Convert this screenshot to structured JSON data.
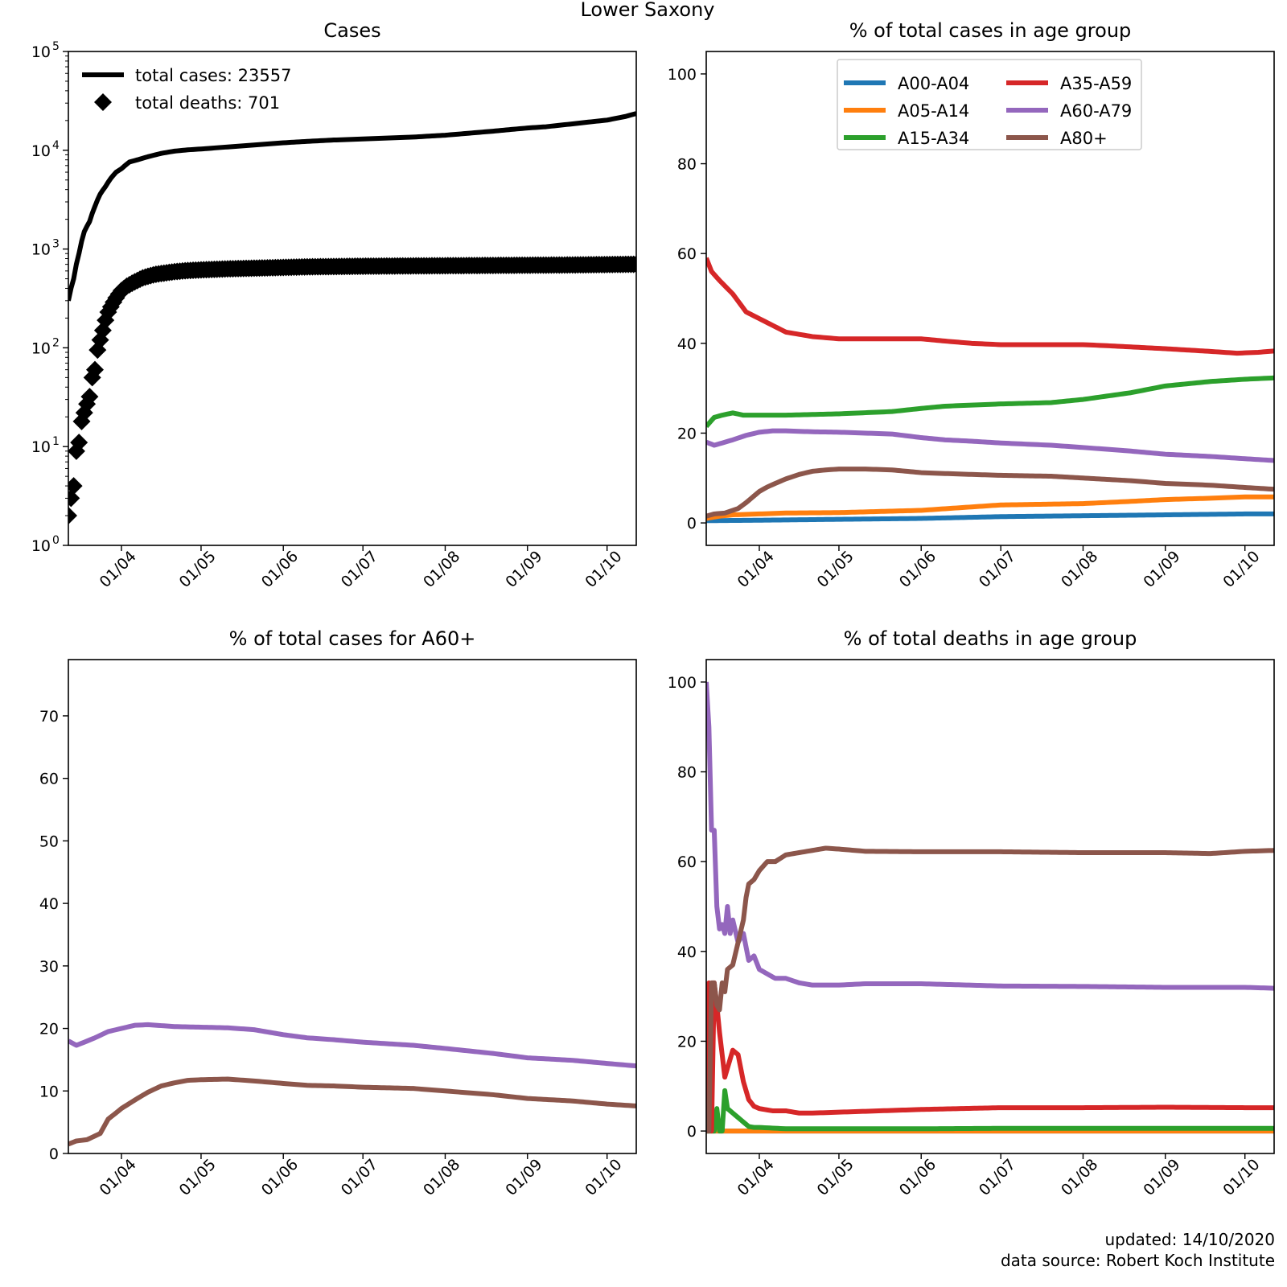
{
  "suptitle": "Lower Saxony",
  "footer": {
    "updated": "updated: 14/10/2020",
    "source": "data source: Robert Koch Institute"
  },
  "colors": {
    "A00-A04": "#1f77b4",
    "A05-A14": "#ff7f0e",
    "A15-A34": "#2ca02c",
    "A35-A59": "#d62728",
    "A60-A79": "#9467bd",
    "A80+": "#8c564b",
    "cases": "#000000"
  },
  "chart_data": [
    {
      "id": "cases",
      "type": "line",
      "title": "Cases",
      "yscale": "log",
      "ylim": [
        1,
        100000
      ],
      "xlim_day": [
        0,
        214
      ],
      "x_date_start": "2020-03-12",
      "x_ticks_day": [
        20,
        50,
        81,
        111,
        142,
        173,
        203
      ],
      "x_tick_labels": [
        "01/04",
        "01/05",
        "01/06",
        "01/07",
        "01/08",
        "01/09",
        "01/10"
      ],
      "y_ticks": [
        1,
        10,
        100,
        1000,
        10000,
        100000
      ],
      "y_tick_base": "10",
      "y_tick_exps": [
        "0",
        "1",
        "2",
        "3",
        "4",
        "5"
      ],
      "legend_position": "upper-left",
      "series": [
        {
          "name": "total cases",
          "label": "total cases: 23557",
          "style": "line",
          "color": "#000000",
          "x": [
            0,
            2,
            4,
            6,
            8,
            10,
            12,
            14,
            16,
            18,
            20,
            23,
            26,
            30,
            35,
            40,
            45,
            50,
            60,
            70,
            81,
            90,
            100,
            111,
            120,
            130,
            142,
            150,
            160,
            173,
            180,
            190,
            203,
            210,
            214
          ],
          "values": [
            300,
            500,
            900,
            1500,
            1900,
            2700,
            3600,
            4300,
            5200,
            6000,
            6500,
            7600,
            8000,
            8600,
            9300,
            9800,
            10100,
            10300,
            10800,
            11300,
            11900,
            12300,
            12700,
            13000,
            13300,
            13600,
            14200,
            14800,
            15600,
            16800,
            17300,
            18500,
            20200,
            22000,
            23557
          ]
        },
        {
          "name": "total deaths",
          "label": "total deaths: 701",
          "style": "markers",
          "color": "#000000",
          "x": [
            0,
            1,
            2,
            3,
            4,
            5,
            6,
            7,
            8,
            9,
            10,
            11,
            12,
            13,
            14,
            15,
            16,
            17,
            18,
            19,
            20,
            22,
            24,
            26,
            28,
            30,
            33,
            36,
            40,
            45,
            50,
            60,
            70,
            80,
            90,
            100,
            110,
            130,
            150,
            170,
            190,
            200,
            214
          ],
          "values": [
            2,
            3,
            4,
            9,
            11,
            18,
            22,
            27,
            32,
            50,
            60,
            95,
            120,
            150,
            190,
            230,
            260,
            290,
            320,
            350,
            380,
            420,
            450,
            480,
            510,
            530,
            555,
            570,
            590,
            605,
            615,
            630,
            640,
            650,
            660,
            665,
            670,
            675,
            680,
            685,
            690,
            695,
            701
          ]
        }
      ]
    },
    {
      "id": "age_cases",
      "type": "line",
      "title": "% of total cases in age group",
      "ylim": [
        -5,
        105
      ],
      "xlim_day": [
        0,
        214
      ],
      "x_ticks_day": [
        20,
        50,
        81,
        111,
        142,
        173,
        203
      ],
      "x_tick_labels": [
        "01/04",
        "01/05",
        "01/06",
        "01/07",
        "01/08",
        "01/09",
        "01/10"
      ],
      "y_ticks": [
        0,
        20,
        40,
        60,
        80,
        100
      ],
      "legend_position": "upper-center",
      "series": [
        {
          "name": "A00-A04",
          "color": "#1f77b4",
          "x": [
            0,
            20,
            50,
            81,
            111,
            142,
            173,
            203,
            214
          ],
          "values": [
            0.5,
            0.6,
            0.8,
            1.0,
            1.4,
            1.6,
            1.8,
            2.0,
            2.0
          ]
        },
        {
          "name": "A05-A14",
          "color": "#ff7f0e",
          "x": [
            0,
            5,
            10,
            20,
            30,
            50,
            81,
            111,
            142,
            160,
            173,
            190,
            203,
            214
          ],
          "values": [
            1.0,
            1.5,
            1.8,
            2.0,
            2.2,
            2.3,
            2.8,
            4.0,
            4.3,
            4.8,
            5.2,
            5.5,
            5.8,
            5.8
          ]
        },
        {
          "name": "A15-A34",
          "color": "#2ca02c",
          "x": [
            0,
            3,
            6,
            10,
            14,
            20,
            30,
            50,
            70,
            81,
            90,
            111,
            130,
            142,
            160,
            173,
            190,
            203,
            214
          ],
          "values": [
            21.5,
            23.5,
            24.0,
            24.5,
            24.0,
            24.0,
            24.0,
            24.3,
            24.8,
            25.5,
            26.0,
            26.5,
            26.8,
            27.5,
            29.0,
            30.5,
            31.5,
            32.0,
            32.3
          ]
        },
        {
          "name": "A35-A59",
          "color": "#d62728",
          "x": [
            0,
            2,
            5,
            10,
            15,
            20,
            25,
            30,
            40,
            50,
            60,
            70,
            81,
            90,
            100,
            111,
            130,
            142,
            150,
            160,
            173,
            190,
            200,
            208,
            214
          ],
          "values": [
            59,
            56,
            54,
            51,
            47,
            45.5,
            44,
            42.5,
            41.5,
            41,
            41,
            41,
            41,
            40.5,
            40,
            39.7,
            39.7,
            39.7,
            39.5,
            39.2,
            38.8,
            38.2,
            37.8,
            38.0,
            38.3
          ]
        },
        {
          "name": "A60-A79",
          "color": "#9467bd",
          "x": [
            0,
            3,
            6,
            10,
            15,
            20,
            25,
            30,
            40,
            50,
            60,
            70,
            81,
            90,
            100,
            111,
            130,
            142,
            160,
            173,
            190,
            203,
            214
          ],
          "values": [
            18,
            17.3,
            17.8,
            18.5,
            19.5,
            20.2,
            20.5,
            20.5,
            20.3,
            20.2,
            20.0,
            19.8,
            19.0,
            18.5,
            18.2,
            17.8,
            17.3,
            16.8,
            16.0,
            15.3,
            14.8,
            14.3,
            13.9
          ]
        },
        {
          "name": "A80+",
          "color": "#8c564b",
          "x": [
            0,
            3,
            7,
            12,
            15,
            18,
            20,
            23,
            26,
            30,
            35,
            40,
            45,
            50,
            60,
            70,
            81,
            90,
            100,
            111,
            130,
            142,
            160,
            173,
            190,
            203,
            214
          ],
          "values": [
            1.5,
            2.0,
            2.2,
            3.2,
            4.5,
            6.0,
            7.0,
            8.0,
            8.8,
            9.8,
            10.8,
            11.5,
            11.8,
            12.0,
            12.0,
            11.8,
            11.2,
            11.0,
            10.8,
            10.6,
            10.4,
            10.0,
            9.4,
            8.8,
            8.4,
            7.9,
            7.5
          ]
        }
      ]
    },
    {
      "id": "a60_cases",
      "type": "line",
      "title": "% of total cases for A60+",
      "ylim": [
        0,
        79
      ],
      "xlim_day": [
        0,
        214
      ],
      "x_ticks_day": [
        20,
        50,
        81,
        111,
        142,
        173,
        203
      ],
      "x_tick_labels": [
        "01/04",
        "01/05",
        "01/06",
        "01/07",
        "01/08",
        "01/09",
        "01/10"
      ],
      "y_ticks": [
        0,
        10,
        20,
        30,
        40,
        50,
        60,
        70
      ],
      "series": [
        {
          "name": "A60-A79",
          "color": "#9467bd",
          "x": [
            0,
            3,
            6,
            10,
            15,
            20,
            25,
            30,
            40,
            50,
            60,
            70,
            81,
            90,
            100,
            111,
            130,
            142,
            160,
            173,
            190,
            203,
            214
          ],
          "values": [
            18,
            17.3,
            17.8,
            18.5,
            19.5,
            20.0,
            20.5,
            20.6,
            20.3,
            20.2,
            20.1,
            19.8,
            19.0,
            18.5,
            18.2,
            17.8,
            17.3,
            16.8,
            16.0,
            15.3,
            14.9,
            14.4,
            14.0
          ]
        },
        {
          "name": "A80+",
          "color": "#8c564b",
          "x": [
            0,
            3,
            7,
            12,
            15,
            18,
            20,
            23,
            26,
            30,
            35,
            40,
            45,
            50,
            60,
            70,
            81,
            90,
            100,
            111,
            130,
            142,
            160,
            173,
            190,
            203,
            214
          ],
          "values": [
            1.5,
            2.0,
            2.2,
            3.2,
            5.5,
            6.5,
            7.2,
            8.0,
            8.8,
            9.8,
            10.8,
            11.3,
            11.7,
            11.8,
            11.9,
            11.6,
            11.2,
            10.9,
            10.8,
            10.6,
            10.4,
            10.0,
            9.4,
            8.8,
            8.4,
            7.9,
            7.6
          ]
        }
      ]
    },
    {
      "id": "age_deaths",
      "type": "line",
      "title": "% of total deaths in age group",
      "ylim": [
        -5,
        105
      ],
      "xlim_day": [
        0,
        214
      ],
      "x_ticks_day": [
        20,
        50,
        81,
        111,
        142,
        173,
        203
      ],
      "x_tick_labels": [
        "01/04",
        "01/05",
        "01/06",
        "01/07",
        "01/08",
        "01/09",
        "01/10"
      ],
      "y_ticks": [
        0,
        20,
        40,
        60,
        80,
        100
      ],
      "series": [
        {
          "name": "A00-A04",
          "color": "#1f77b4",
          "x": [
            0,
            214
          ],
          "values": [
            0,
            0
          ]
        },
        {
          "name": "A05-A14",
          "color": "#ff7f0e",
          "x": [
            0,
            214
          ],
          "values": [
            0,
            0
          ]
        },
        {
          "name": "A15-A34",
          "color": "#2ca02c",
          "x": [
            0,
            3,
            4,
            5,
            6,
            7,
            8,
            10,
            12,
            14,
            16,
            18,
            20,
            30,
            50,
            81,
            111,
            142,
            173,
            203,
            214
          ],
          "values": [
            0,
            0,
            5,
            0,
            0,
            9,
            5,
            4,
            3,
            2,
            1,
            0.8,
            0.8,
            0.5,
            0.5,
            0.5,
            0.6,
            0.6,
            0.6,
            0.6,
            0.6
          ]
        },
        {
          "name": "A35-A59",
          "color": "#d62728",
          "x": [
            0,
            1,
            2,
            3,
            4,
            5,
            6,
            7,
            8,
            10,
            12,
            14,
            16,
            18,
            20,
            25,
            30,
            35,
            40,
            50,
            81,
            111,
            142,
            173,
            203,
            214
          ],
          "values": [
            0,
            33,
            0,
            33,
            28,
            22,
            17,
            12,
            14,
            18,
            17,
            11,
            7,
            5.5,
            5,
            4.5,
            4.5,
            4,
            4,
            4.2,
            4.8,
            5.2,
            5.2,
            5.3,
            5.2,
            5.2
          ]
        },
        {
          "name": "A60-A79",
          "color": "#9467bd",
          "x": [
            0,
            1,
            2,
            3,
            4,
            5,
            6,
            7,
            8,
            9,
            10,
            12,
            14,
            16,
            18,
            20,
            23,
            26,
            30,
            35,
            40,
            50,
            60,
            81,
            111,
            142,
            173,
            203,
            214
          ],
          "values": [
            100,
            90,
            67,
            67,
            50,
            45,
            46,
            44,
            50,
            44,
            47,
            42,
            44,
            38,
            39,
            36,
            35,
            34,
            34,
            33,
            32.5,
            32.5,
            32.8,
            32.8,
            32.3,
            32.2,
            32.0,
            32.0,
            31.8
          ]
        },
        {
          "name": "A80+",
          "color": "#8c564b",
          "x": [
            0,
            1,
            2,
            3,
            4,
            5,
            6,
            7,
            8,
            10,
            12,
            14,
            15,
            16,
            18,
            20,
            23,
            26,
            30,
            35,
            40,
            45,
            50,
            60,
            81,
            111,
            142,
            173,
            190,
            203,
            214
          ],
          "values": [
            0,
            0,
            33,
            33,
            28,
            27,
            33,
            31,
            36,
            37,
            42,
            47,
            52,
            55,
            56,
            58,
            60,
            60,
            61.5,
            62,
            62.5,
            63,
            62.8,
            62.3,
            62.2,
            62.2,
            62,
            62,
            61.8,
            62.3,
            62.5
          ]
        }
      ]
    }
  ]
}
